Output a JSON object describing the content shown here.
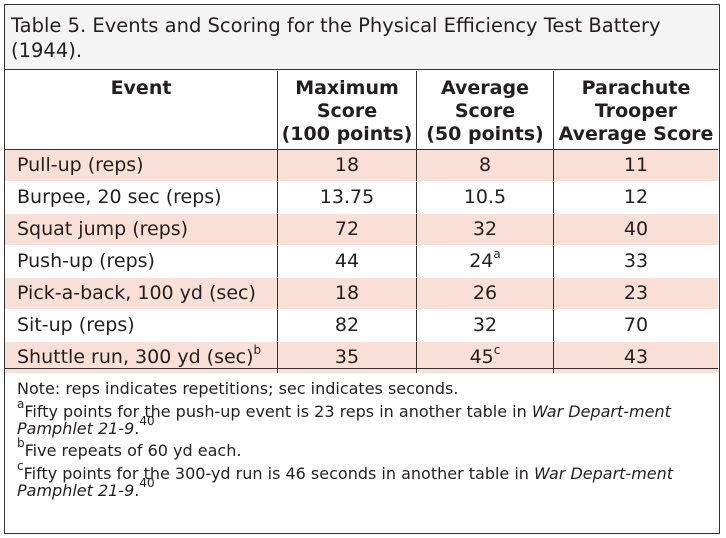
{
  "title": "Table 5. Events and Scoring for the Physical Efficiency Test Battery (1944).",
  "headers": [
    [
      "Event"
    ],
    [
      "Maximum",
      "Score",
      "(100 points)"
    ],
    [
      "Average",
      "Score",
      "(50 points)"
    ],
    [
      "Parachute",
      "Trooper",
      "Average Score"
    ]
  ],
  "rows": [
    {
      "event": "Pull-up (reps)",
      "event_sup": "",
      "max": "18",
      "avg": "8",
      "avg_sup": "",
      "para": "11"
    },
    {
      "event": "Burpee, 20 sec (reps)",
      "event_sup": "",
      "max": "13.75",
      "avg": "10.5",
      "avg_sup": "",
      "para": "12"
    },
    {
      "event": "Squat jump (reps)",
      "event_sup": "",
      "max": "72",
      "avg": "32",
      "avg_sup": "",
      "para": "40"
    },
    {
      "event": "Push-up (reps)",
      "event_sup": "",
      "max": "44",
      "avg": "24",
      "avg_sup": "a",
      "para": "33"
    },
    {
      "event": "Pick-a-back, 100 yd (sec)",
      "event_sup": "",
      "max": "18",
      "avg": "26",
      "avg_sup": "",
      "para": "23"
    },
    {
      "event": "Sit-up (reps)",
      "event_sup": "",
      "max": "82",
      "avg": "32",
      "avg_sup": "",
      "para": "70"
    },
    {
      "event": "Shuttle run, 300 yd (sec)",
      "event_sup": "b",
      "max": "35",
      "avg": "45",
      "avg_sup": "c",
      "para": "43"
    }
  ],
  "notes": {
    "general": "Note: reps indicates repetitions; sec indicates seconds.",
    "a_mark": "a",
    "a_text": "Fifty points for the push-up event is 23 reps in another table in ",
    "a_italic": "War Depart-ment Pamphlet 21-9",
    "a_end": ".",
    "a_ref": "40",
    "b_mark": "b",
    "b_text": "Five repeats of 60 yd each.",
    "c_mark": "c",
    "c_text": "Fifty points for the 300-yd run is 46 seconds in another table in ",
    "c_italic": "War Depart-ment Pamphlet 21-9",
    "c_end": ".",
    "c_ref": "40"
  }
}
